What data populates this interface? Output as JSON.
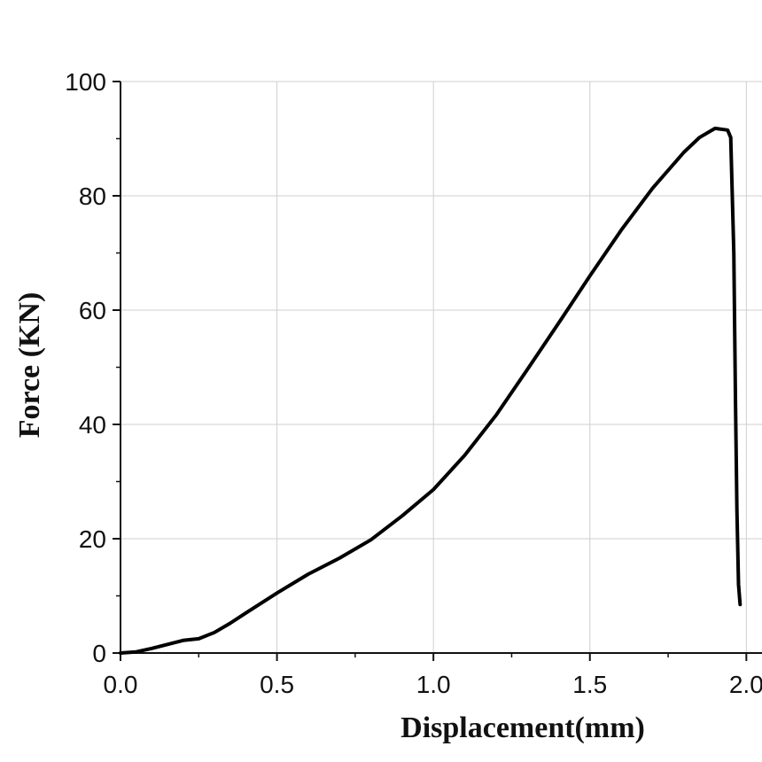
{
  "chart_data": {
    "type": "line",
    "title": "",
    "xlabel": "Displacement(mm)",
    "ylabel": "Force (KN)",
    "xlim": [
      0.0,
      2.05
    ],
    "ylim": [
      0,
      100
    ],
    "x_ticks": [
      "0.0",
      "0.5",
      "1.0",
      "1.5",
      "2.0"
    ],
    "y_ticks": [
      "0",
      "20",
      "40",
      "60",
      "80",
      "100"
    ],
    "grid": true,
    "legend": "none",
    "series": [
      {
        "color": "#000000",
        "x": [
          0.0,
          0.05,
          0.1,
          0.15,
          0.2,
          0.25,
          0.3,
          0.35,
          0.4,
          0.5,
          0.6,
          0.7,
          0.8,
          0.9,
          1.0,
          1.1,
          1.2,
          1.3,
          1.4,
          1.5,
          1.6,
          1.7,
          1.8,
          1.85,
          1.9,
          1.94,
          1.95,
          1.96,
          1.965,
          1.97,
          1.975,
          1.98
        ],
        "y": [
          0.0,
          0.2,
          0.8,
          1.5,
          2.2,
          2.5,
          3.6,
          5.2,
          7.0,
          10.5,
          13.8,
          16.6,
          19.8,
          24.0,
          28.6,
          34.6,
          41.6,
          49.6,
          57.7,
          66.0,
          74.0,
          81.3,
          87.6,
          90.2,
          91.8,
          91.5,
          90.2,
          70.0,
          45.0,
          25.0,
          12.0,
          8.5
        ]
      }
    ]
  }
}
